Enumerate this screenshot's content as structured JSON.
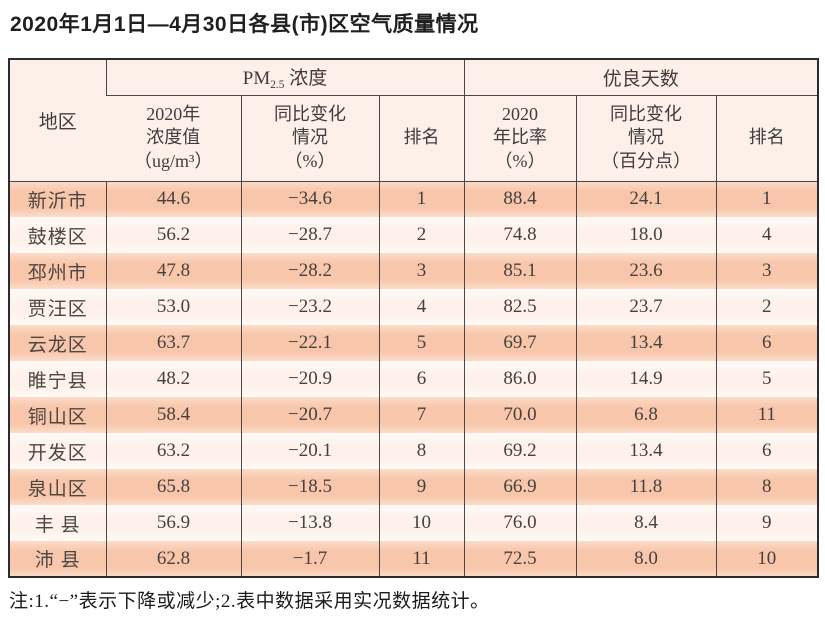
{
  "page": {
    "title": "2020年1月1日—4月30日各县(市)区空气质量情况"
  },
  "table": {
    "header": {
      "region": "地区",
      "pm25_group": {
        "prefix": "PM",
        "sub": "2.5",
        "suffix": " 浓度"
      },
      "good_days_group": "优良天数",
      "sub_headers": [
        "2020年\n浓度值\n（ug/m³）",
        "同比变化\n情况\n（%）",
        "排名",
        "2020\n年比率\n（%）",
        "同比变化\n情况\n（百分点）",
        "排名"
      ]
    },
    "rows": [
      {
        "region": "新沂市",
        "pm25_value": "44.6",
        "pm25_change": "−34.6",
        "pm25_rank": "1",
        "good_rate": "88.4",
        "good_change": "24.1",
        "good_rank": "1"
      },
      {
        "region": "鼓楼区",
        "pm25_value": "56.2",
        "pm25_change": "−28.7",
        "pm25_rank": "2",
        "good_rate": "74.8",
        "good_change": "18.0",
        "good_rank": "4"
      },
      {
        "region": "邳州市",
        "pm25_value": "47.8",
        "pm25_change": "−28.2",
        "pm25_rank": "3",
        "good_rate": "85.1",
        "good_change": "23.6",
        "good_rank": "3"
      },
      {
        "region": "贾汪区",
        "pm25_value": "53.0",
        "pm25_change": "−23.2",
        "pm25_rank": "4",
        "good_rate": "82.5",
        "good_change": "23.7",
        "good_rank": "2"
      },
      {
        "region": "云龙区",
        "pm25_value": "63.7",
        "pm25_change": "−22.1",
        "pm25_rank": "5",
        "good_rate": "69.7",
        "good_change": "13.4",
        "good_rank": "6"
      },
      {
        "region": "睢宁县",
        "pm25_value": "48.2",
        "pm25_change": "−20.9",
        "pm25_rank": "6",
        "good_rate": "86.0",
        "good_change": "14.9",
        "good_rank": "5"
      },
      {
        "region": "铜山区",
        "pm25_value": "58.4",
        "pm25_change": "−20.7",
        "pm25_rank": "7",
        "good_rate": "70.0",
        "good_change": "6.8",
        "good_rank": "11"
      },
      {
        "region": "开发区",
        "pm25_value": "63.2",
        "pm25_change": "−20.1",
        "pm25_rank": "8",
        "good_rate": "69.2",
        "good_change": "13.4",
        "good_rank": "6"
      },
      {
        "region": "泉山区",
        "pm25_value": "65.8",
        "pm25_change": "−18.5",
        "pm25_rank": "9",
        "good_rate": "66.9",
        "good_change": "11.8",
        "good_rank": "8"
      },
      {
        "region": "丰 县",
        "pm25_value": "56.9",
        "pm25_change": "−13.8",
        "pm25_rank": "10",
        "good_rate": "76.0",
        "good_change": "8.4",
        "good_rank": "9"
      },
      {
        "region": "沛 县",
        "pm25_value": "62.8",
        "pm25_change": "−1.7",
        "pm25_rank": "11",
        "good_rate": "72.5",
        "good_change": "8.0",
        "good_rank": "10"
      }
    ]
  },
  "footnote": "注:1.“−”表示下降或减少;2.表中数据采用实况数据统计。",
  "colors": {
    "row_salmon": "#f8c6aa",
    "row_light": "#fdf1ea",
    "header_bg": "#fcf0e8",
    "border_outer": "#2b2b31",
    "border_inner": "#4a464c",
    "title_text": "#1f1f1f"
  }
}
